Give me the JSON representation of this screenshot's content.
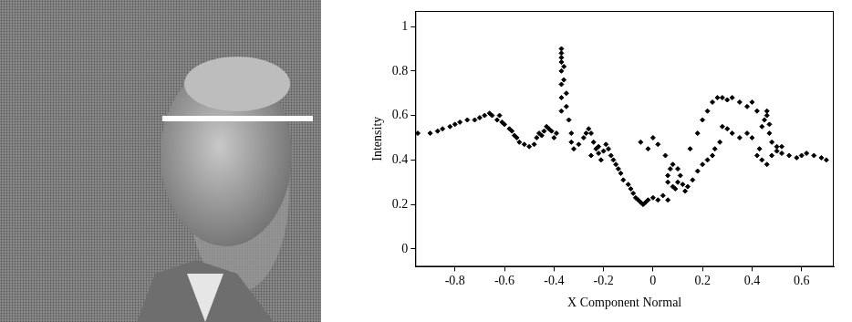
{
  "chart_data": {
    "type": "scatter",
    "x_label": "X Component Normal",
    "y_label": "Intensity",
    "color": "#000000",
    "marker": "diamond",
    "grid": false,
    "xlim": [
      -0.96,
      0.73
    ],
    "ylim": [
      -0.08,
      1.07
    ],
    "xticks": [
      -0.8,
      -0.6,
      -0.4,
      -0.2,
      0,
      0.2,
      0.4,
      0.6
    ],
    "yticks": [
      0,
      0.2,
      0.4,
      0.6,
      0.8,
      1
    ],
    "x": [
      -0.95,
      -0.9,
      -0.87,
      -0.85,
      -0.82,
      -0.8,
      -0.78,
      -0.75,
      -0.72,
      -0.7,
      -0.68,
      -0.66,
      -0.65,
      -0.63,
      -0.62,
      -0.61,
      -0.6,
      -0.58,
      -0.57,
      -0.56,
      -0.55,
      -0.54,
      -0.52,
      -0.5,
      -0.48,
      -0.47,
      -0.46,
      -0.45,
      -0.44,
      -0.43,
      -0.42,
      -0.41,
      -0.4,
      -0.39,
      -0.37,
      -0.37,
      -0.37,
      -0.37,
      -0.37,
      -0.37,
      -0.37,
      -0.37,
      -0.36,
      -0.36,
      -0.35,
      -0.35,
      -0.34,
      -0.33,
      -0.33,
      -0.32,
      -0.3,
      -0.28,
      -0.27,
      -0.26,
      -0.25,
      -0.25,
      -0.24,
      -0.23,
      -0.22,
      -0.22,
      -0.21,
      -0.2,
      -0.19,
      -0.18,
      -0.17,
      -0.16,
      -0.15,
      -0.14,
      -0.13,
      -0.12,
      -0.1,
      -0.09,
      -0.08,
      -0.07,
      -0.06,
      -0.05,
      -0.04,
      -0.03,
      -0.02,
      0.0,
      0.02,
      0.04,
      0.06,
      -0.05,
      0.0,
      0.02,
      -0.02,
      0.05,
      0.06,
      0.07,
      0.08,
      0.1,
      0.11,
      0.1,
      0.08,
      0.06,
      0.09,
      0.12,
      0.13,
      0.14,
      0.16,
      0.18,
      0.2,
      0.22,
      0.24,
      0.25,
      0.27,
      0.15,
      0.18,
      0.2,
      0.22,
      0.24,
      0.26,
      0.28,
      0.3,
      0.32,
      0.35,
      0.38,
      0.4,
      0.42,
      0.28,
      0.3,
      0.32,
      0.35,
      0.38,
      0.4,
      0.44,
      0.45,
      0.46,
      0.46,
      0.47,
      0.47,
      0.48,
      0.5,
      0.5,
      0.52,
      0.55,
      0.58,
      0.6,
      0.62,
      0.65,
      0.68,
      0.7,
      0.43,
      0.42,
      0.44,
      0.46,
      0.48,
      0.52
    ],
    "values": [
      0.52,
      0.52,
      0.53,
      0.54,
      0.55,
      0.56,
      0.57,
      0.58,
      0.58,
      0.59,
      0.6,
      0.61,
      0.6,
      0.58,
      0.6,
      0.57,
      0.56,
      0.54,
      0.53,
      0.51,
      0.5,
      0.48,
      0.47,
      0.46,
      0.47,
      0.5,
      0.52,
      0.51,
      0.53,
      0.55,
      0.54,
      0.53,
      0.5,
      0.52,
      0.62,
      0.68,
      0.74,
      0.8,
      0.84,
      0.86,
      0.88,
      0.9,
      0.82,
      0.76,
      0.7,
      0.64,
      0.58,
      0.52,
      0.48,
      0.45,
      0.47,
      0.5,
      0.52,
      0.54,
      0.52,
      0.42,
      0.48,
      0.45,
      0.43,
      0.46,
      0.4,
      0.44,
      0.47,
      0.45,
      0.42,
      0.4,
      0.38,
      0.36,
      0.34,
      0.31,
      0.29,
      0.27,
      0.25,
      0.23,
      0.22,
      0.21,
      0.2,
      0.21,
      0.22,
      0.23,
      0.22,
      0.24,
      0.22,
      0.48,
      0.5,
      0.47,
      0.45,
      0.42,
      0.33,
      0.36,
      0.38,
      0.36,
      0.33,
      0.3,
      0.28,
      0.3,
      0.27,
      0.29,
      0.26,
      0.28,
      0.31,
      0.35,
      0.38,
      0.4,
      0.42,
      0.45,
      0.48,
      0.45,
      0.52,
      0.58,
      0.62,
      0.66,
      0.68,
      0.68,
      0.67,
      0.68,
      0.66,
      0.64,
      0.66,
      0.62,
      0.55,
      0.54,
      0.52,
      0.5,
      0.52,
      0.5,
      0.55,
      0.58,
      0.62,
      0.6,
      0.56,
      0.52,
      0.48,
      0.46,
      0.44,
      0.43,
      0.42,
      0.41,
      0.42,
      0.43,
      0.42,
      0.41,
      0.4,
      0.45,
      0.42,
      0.4,
      0.38,
      0.42,
      0.46
    ]
  }
}
